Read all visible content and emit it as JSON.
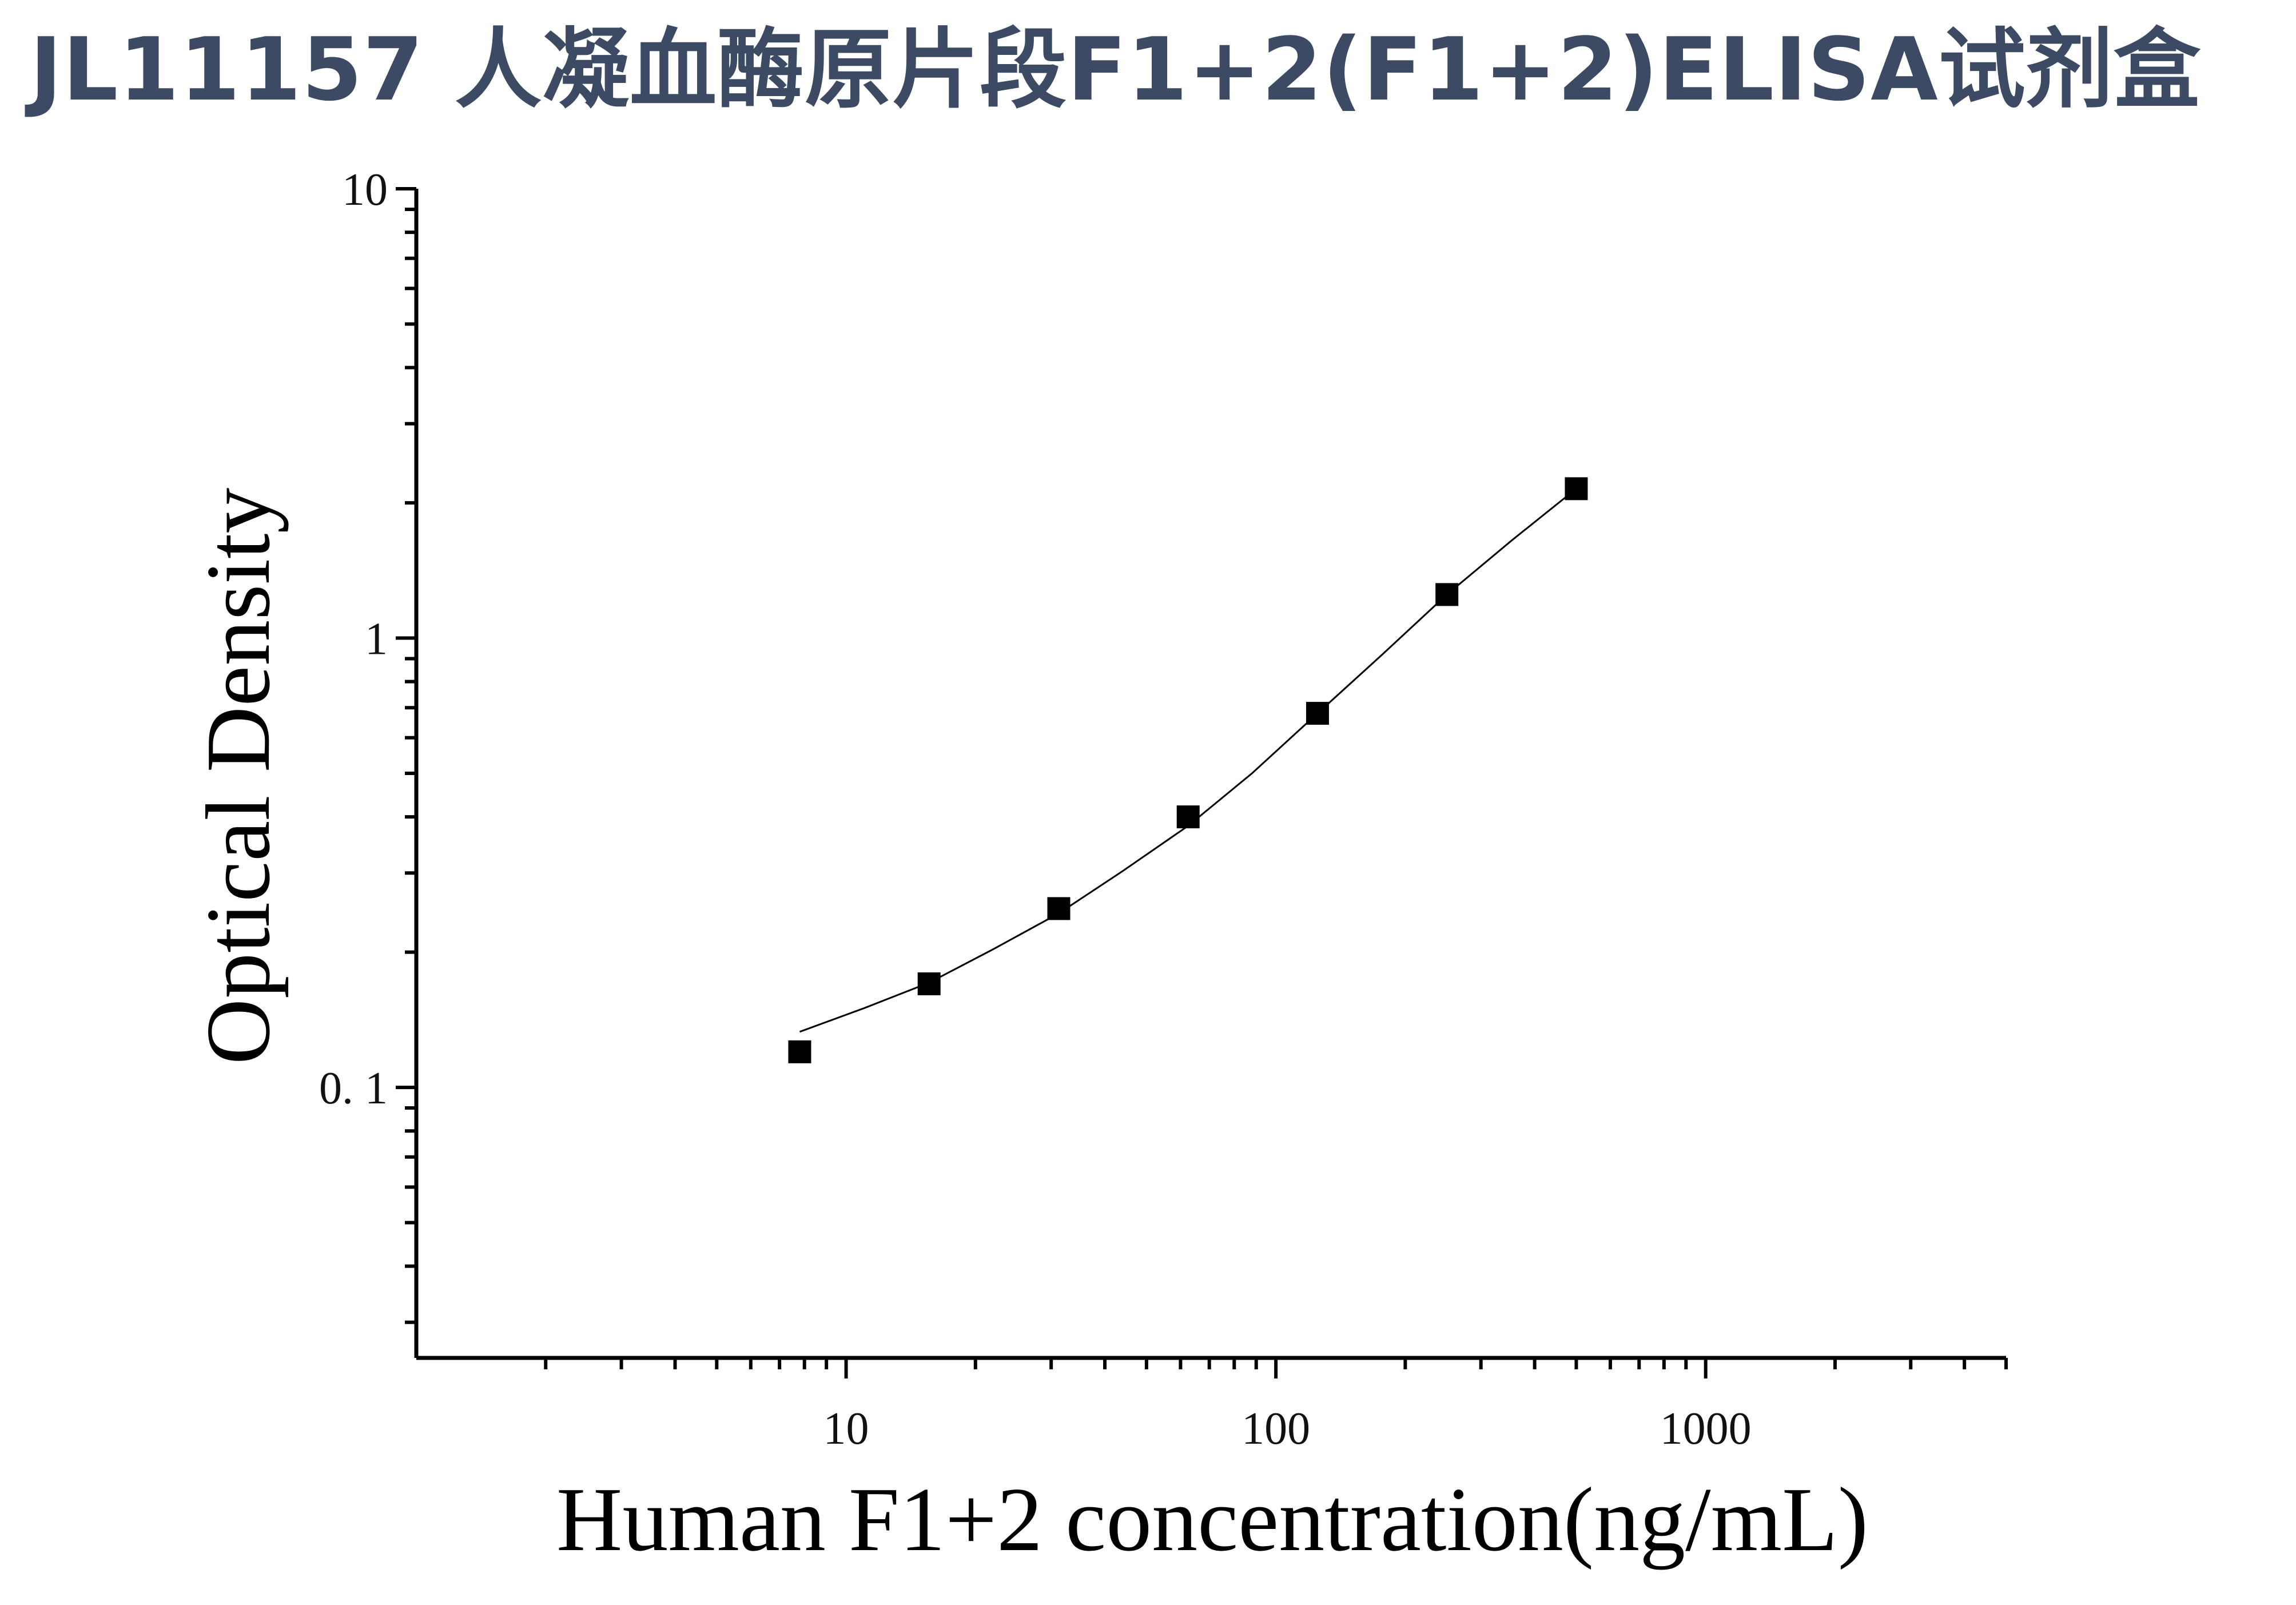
{
  "page": {
    "title": "JL11157 人凝血酶原片段F1+2(F1+2)ELISA试剂盒"
  },
  "chart_data": {
    "type": "scatter",
    "xlabel": "Human F1+2 concentration(ng/mL)",
    "ylabel": "Optical Density",
    "x_scale": "log",
    "y_scale": "log",
    "xlim": [
      1,
      5000
    ],
    "ylim": [
      0.025,
      10
    ],
    "x_ticks": [
      {
        "value": 10,
        "label": "10"
      },
      {
        "value": 100,
        "label": "100"
      },
      {
        "value": 1000,
        "label": "1000"
      }
    ],
    "y_ticks": [
      {
        "value": 10,
        "label": "10"
      },
      {
        "value": 1,
        "label": "1"
      },
      {
        "value": 0.1,
        "label": "0. 1"
      }
    ],
    "grid": false,
    "marker": "square",
    "series": [
      {
        "points": [
          {
            "x": 7.8,
            "y": 0.12
          },
          {
            "x": 15.6,
            "y": 0.17
          },
          {
            "x": 31.25,
            "y": 0.25
          },
          {
            "x": 62.5,
            "y": 0.4
          },
          {
            "x": 125,
            "y": 0.68
          },
          {
            "x": 250,
            "y": 1.25
          },
          {
            "x": 500,
            "y": 2.15
          }
        ],
        "fit_curve": [
          {
            "x": 7.8,
            "y": 0.133
          },
          {
            "x": 11,
            "y": 0.15
          },
          {
            "x": 15.6,
            "y": 0.171
          },
          {
            "x": 22,
            "y": 0.203
          },
          {
            "x": 31.25,
            "y": 0.244
          },
          {
            "x": 44,
            "y": 0.303
          },
          {
            "x": 62.5,
            "y": 0.382
          },
          {
            "x": 88,
            "y": 0.5
          },
          {
            "x": 125,
            "y": 0.68
          },
          {
            "x": 177,
            "y": 0.92
          },
          {
            "x": 250,
            "y": 1.25
          },
          {
            "x": 354,
            "y": 1.65
          },
          {
            "x": 500,
            "y": 2.15
          }
        ],
        "color": "#000000"
      }
    ]
  }
}
